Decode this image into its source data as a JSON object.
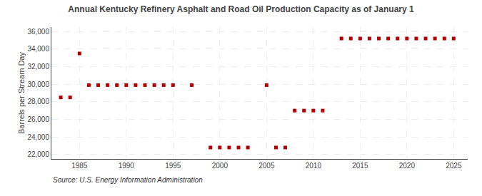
{
  "chart_data": {
    "type": "scatter",
    "title": "Annual Kentucky Refinery Asphalt and Road Oil Production Capacity as of January 1",
    "ylabel": "Barrels per Stream Day",
    "annotations": [
      "Source: U.S. Energy Information Administration"
    ],
    "x": [
      1983,
      1984,
      1985,
      1986,
      1987,
      1988,
      1989,
      1990,
      1991,
      1992,
      1993,
      1994,
      1995,
      1997,
      1999,
      2000,
      2001,
      2002,
      2003,
      2005,
      2006,
      2007,
      2008,
      2009,
      2010,
      2011,
      2013,
      2014,
      2015,
      2016,
      2017,
      2018,
      2019,
      2020,
      2021,
      2022,
      2023,
      2024,
      2025
    ],
    "values": [
      28500,
      28500,
      33500,
      29900,
      29900,
      29900,
      29900,
      29900,
      29900,
      29900,
      29900,
      29900,
      29900,
      29900,
      22800,
      22800,
      22800,
      22800,
      22800,
      29900,
      22800,
      22800,
      27000,
      27000,
      27000,
      27000,
      35200,
      35200,
      35200,
      35200,
      35200,
      35200,
      35200,
      35200,
      35200,
      35200,
      35200,
      35200,
      35200
    ],
    "color": "#b30000",
    "marker": "square",
    "xlim": [
      1982,
      2026.5
    ],
    "ylim": [
      21500,
      36500
    ],
    "xticks": [
      1985,
      1990,
      1995,
      2000,
      2005,
      2010,
      2015,
      2020,
      2025
    ],
    "yticks": [
      {
        "value": 22000,
        "label": "22,000"
      },
      {
        "value": 24000,
        "label": "24,000"
      },
      {
        "value": 26000,
        "label": "26,000"
      },
      {
        "value": 28000,
        "label": "28,000"
      },
      {
        "value": 30000,
        "label": "30,000"
      },
      {
        "value": 32000,
        "label": "32,000"
      },
      {
        "value": 34000,
        "label": "34,000"
      },
      {
        "value": 36000,
        "label": "36,000"
      }
    ],
    "grid": true
  }
}
